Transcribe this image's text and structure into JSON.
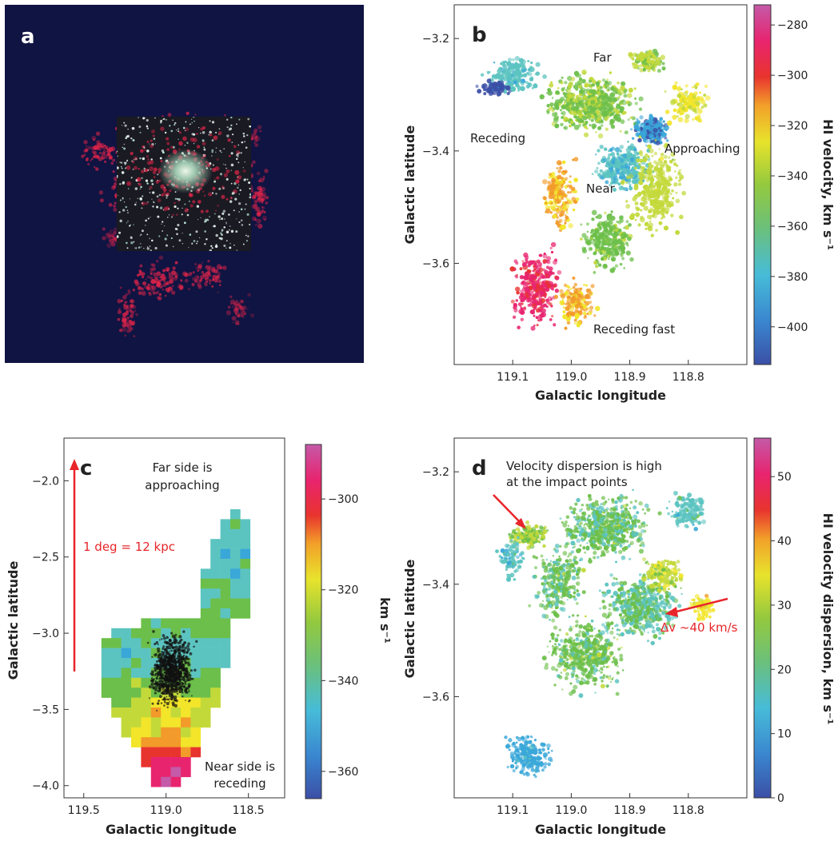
{
  "colors": {
    "navy_bg": "#0f1442",
    "hi_red": "#e8254a",
    "arrow_red": "#e8252a",
    "cmap": [
      "#3b4fa6",
      "#3aa7d9",
      "#5cc4c0",
      "#6cbf4a",
      "#c3d93a",
      "#f2e52a",
      "#f29a2a",
      "#e8342e",
      "#e8246f",
      "#c45aa8"
    ]
  },
  "panels": {
    "a": {
      "letter": "a"
    },
    "b": {
      "letter": "b",
      "xlabel": "Galactic longitude",
      "ylabel": "Galactic latitude",
      "cbar_title": "HI velocity, km s⁻¹",
      "annotations": {
        "far": "Far",
        "receding": "Receding",
        "approaching": "Approaching",
        "near": "Near",
        "receding_fast": "Receding fast"
      }
    },
    "c": {
      "letter": "c",
      "xlabel": "Galactic longitude",
      "ylabel": "Galactic latitude",
      "cbar_title": "km s⁻¹",
      "annotations": {
        "far_line1": "Far side is",
        "far_line2": "approaching",
        "near_line1": "Near side is",
        "near_line2": "receding",
        "scale": "1 deg = 12 kpc"
      }
    },
    "d": {
      "letter": "d",
      "xlabel": "Galactic longitude",
      "ylabel": "Galactic latitude",
      "cbar_title": "HI velocity dispersion, km s⁻¹",
      "annotations": {
        "disp_line1": "Velocity dispersion is high",
        "disp_line2": "at the impact points",
        "dv": "Δv ~40 km/s"
      }
    }
  },
  "chart_data": [
    {
      "panel": "b",
      "type": "heatmap",
      "x_ticks": [
        119.1,
        119.0,
        118.9,
        118.8
      ],
      "x_tick_labels": [
        "119.1",
        "119.0",
        "118.9",
        "118.8"
      ],
      "xlim": [
        119.2,
        118.7
      ],
      "y_ticks": [
        -3.2,
        -3.4,
        -3.6
      ],
      "y_tick_labels": [
        "−3.2",
        "−3.4",
        "−3.6"
      ],
      "ylim": [
        -3.78,
        -3.14
      ],
      "colorbar": {
        "ticks": [
          -280,
          -300,
          -320,
          -340,
          -360,
          -380,
          -400
        ],
        "tick_labels": [
          "−280",
          "−300",
          "−320",
          "−340",
          "−360",
          "−380",
          "−400"
        ],
        "range": [
          -415,
          -272
        ]
      }
    },
    {
      "panel": "c",
      "type": "heatmap",
      "x_ticks": [
        119.5,
        119.0,
        118.5
      ],
      "x_tick_labels": [
        "119.5",
        "119.0",
        "118.5"
      ],
      "xlim": [
        119.62,
        118.28
      ],
      "y_ticks": [
        -2.0,
        -2.5,
        -3.0,
        -3.5,
        -4.0
      ],
      "y_tick_labels": [
        "−2.0",
        "−2.5",
        "−3.0",
        "−3.5",
        "−4.0"
      ],
      "ylim": [
        -4.08,
        -1.72
      ],
      "colorbar": {
        "ticks": [
          -300,
          -320,
          -340,
          -360
        ],
        "tick_labels": [
          "−300",
          "−320",
          "−340",
          "−360"
        ],
        "range": [
          -366,
          -288
        ]
      }
    },
    {
      "panel": "d",
      "type": "heatmap",
      "x_ticks": [
        119.1,
        119.0,
        118.9,
        118.8
      ],
      "x_tick_labels": [
        "119.1",
        "119.0",
        "118.9",
        "118.8"
      ],
      "xlim": [
        119.2,
        118.7
      ],
      "y_ticks": [
        -3.2,
        -3.4,
        -3.6
      ],
      "y_tick_labels": [
        "−3.2",
        "−3.4",
        "−3.6"
      ],
      "ylim": [
        -3.78,
        -3.14
      ],
      "colorbar": {
        "ticks": [
          0,
          10,
          20,
          30,
          40,
          50
        ],
        "tick_labels": [
          "0",
          "10",
          "20",
          "30",
          "40",
          "50"
        ],
        "range": [
          0,
          56
        ]
      }
    }
  ]
}
